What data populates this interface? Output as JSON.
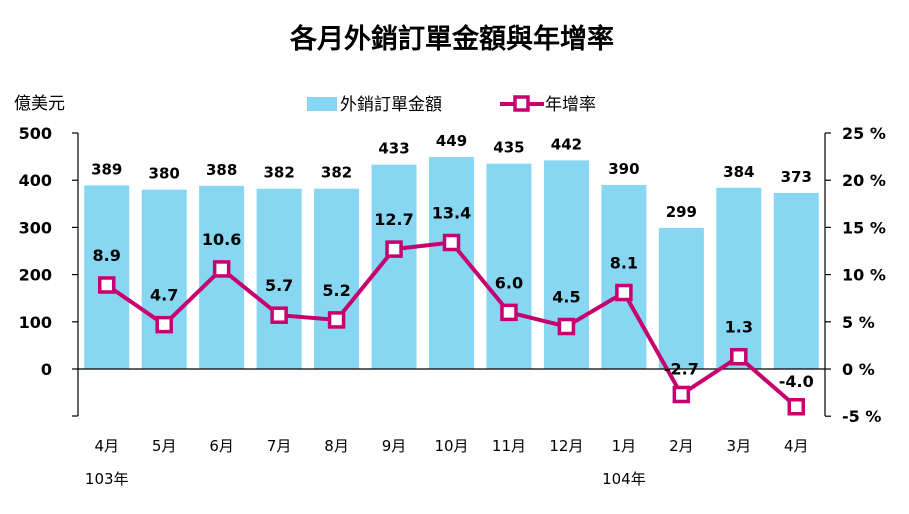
{
  "chart_data": {
    "type": "bar",
    "title": "各月外銷訂單金額與年增率",
    "y_left_unit": "億美元",
    "y_left_range": [
      0,
      500
    ],
    "y_left_ticks": [
      "500",
      "400",
      "300",
      "200",
      "100",
      "0"
    ],
    "y_right_range": [
      -5,
      25
    ],
    "y_right_ticks": [
      "25 %",
      "20 %",
      "15 %",
      "10 %",
      "5 %",
      "0 %",
      "-5 %"
    ],
    "categories": [
      "4月",
      "5月",
      "6月",
      "7月",
      "8月",
      "9月",
      "10月",
      "11月",
      "12月",
      "1月",
      "2月",
      "3月",
      "4月"
    ],
    "year_labels": [
      {
        "index": 0,
        "text": "103年"
      },
      {
        "index": 9,
        "text": "104年"
      }
    ],
    "legend_position": "top",
    "series": [
      {
        "name": "外銷訂單金額",
        "kind": "bar",
        "axis": "left",
        "color": "#87d6f2",
        "values": [
          389,
          380,
          388,
          382,
          382,
          433,
          449,
          435,
          442,
          390,
          299,
          384,
          373
        ],
        "labels": [
          "389",
          "380",
          "388",
          "382",
          "382",
          "433",
          "449",
          "435",
          "442",
          "390",
          "299",
          "384",
          "373"
        ]
      },
      {
        "name": "年增率",
        "kind": "line",
        "axis": "right",
        "color": "#c8006e",
        "values": [
          8.9,
          4.7,
          10.6,
          5.7,
          5.2,
          12.7,
          13.4,
          6.0,
          4.5,
          8.1,
          -2.7,
          1.3,
          -4.0
        ],
        "labels": [
          "8.9",
          "4.7",
          "10.6",
          "5.7",
          "5.2",
          "12.7",
          "13.4",
          "6.0",
          "4.5",
          "8.1",
          "-2.7",
          "1.3",
          "-4.0"
        ]
      }
    ]
  }
}
